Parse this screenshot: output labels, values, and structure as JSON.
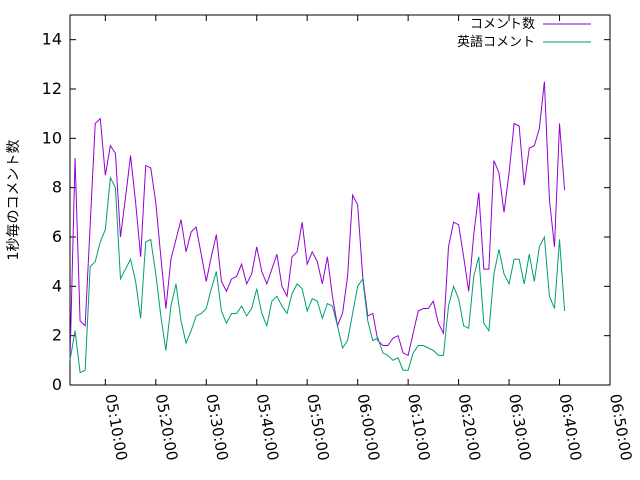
{
  "chart_data": {
    "type": "line",
    "title": "",
    "xlabel": "",
    "ylabel": "1秒毎のコメント数",
    "ylim": [
      0,
      15
    ],
    "xlim": [
      "05:03:00",
      "06:50:00"
    ],
    "y_ticks": [
      "0",
      "2",
      "4",
      "6",
      "8",
      "10",
      "12",
      "14"
    ],
    "x_ticks": [
      "05:10:00",
      "05:20:00",
      "05:30:00",
      "05:40:00",
      "05:50:00",
      "06:00:00",
      "06:10:00",
      "06:20:00",
      "06:30:00",
      "06:40:00",
      "06:50:00"
    ],
    "grid": false,
    "legend_position": "top-right",
    "series": [
      {
        "name": "コメント数",
        "color": "#9400d3",
        "x": [
          "05:03:00",
          "05:04:00",
          "05:05:00",
          "05:06:00",
          "05:07:00",
          "05:08:00",
          "05:09:00",
          "05:10:00",
          "05:11:00",
          "05:12:00",
          "05:13:00",
          "05:14:00",
          "05:15:00",
          "05:16:00",
          "05:17:00",
          "05:18:00",
          "05:19:00",
          "05:20:00",
          "05:21:00",
          "05:22:00",
          "05:23:00",
          "05:24:00",
          "05:25:00",
          "05:26:00",
          "05:27:00",
          "05:28:00",
          "05:29:00",
          "05:30:00",
          "05:31:00",
          "05:32:00",
          "05:33:00",
          "05:34:00",
          "05:35:00",
          "05:36:00",
          "05:37:00",
          "05:38:00",
          "05:39:00",
          "05:40:00",
          "05:41:00",
          "05:42:00",
          "05:43:00",
          "05:44:00",
          "05:45:00",
          "05:46:00",
          "05:47:00",
          "05:48:00",
          "05:49:00",
          "05:50:00",
          "05:51:00",
          "05:52:00",
          "05:53:00",
          "05:54:00",
          "05:55:00",
          "05:56:00",
          "05:57:00",
          "05:58:00",
          "05:59:00",
          "06:00:00",
          "06:01:00",
          "06:02:00",
          "06:03:00",
          "06:04:00",
          "06:05:00",
          "06:06:00",
          "06:07:00",
          "06:08:00",
          "06:09:00",
          "06:10:00",
          "06:11:00",
          "06:12:00",
          "06:13:00",
          "06:14:00",
          "06:15:00",
          "06:16:00",
          "06:17:00",
          "06:18:00",
          "06:19:00",
          "06:20:00",
          "06:21:00",
          "06:22:00",
          "06:23:00",
          "06:24:00",
          "06:25:00",
          "06:26:00",
          "06:27:00",
          "06:28:00",
          "06:29:00",
          "06:30:00",
          "06:31:00",
          "06:32:00",
          "06:33:00",
          "06:34:00",
          "06:35:00",
          "06:36:00",
          "06:37:00",
          "06:38:00",
          "06:39:00",
          "06:40:00",
          "06:41:00"
        ],
        "values": [
          1.0,
          9.2,
          2.6,
          2.4,
          6.5,
          10.6,
          10.8,
          8.5,
          9.7,
          9.4,
          6.0,
          7.6,
          9.3,
          7.4,
          5.2,
          8.9,
          8.8,
          7.4,
          5.2,
          3.1,
          5.1,
          5.9,
          6.7,
          5.4,
          6.2,
          6.4,
          5.3,
          4.2,
          5.2,
          6.1,
          4.2,
          3.8,
          4.3,
          4.4,
          4.9,
          4.1,
          4.5,
          5.6,
          4.6,
          4.1,
          4.7,
          5.3,
          4.0,
          3.6,
          5.2,
          5.4,
          6.6,
          4.9,
          5.4,
          5.0,
          4.1,
          5.2,
          3.6,
          2.4,
          2.9,
          4.4,
          7.7,
          7.3,
          4.4,
          2.8,
          2.9,
          1.8,
          1.6,
          1.6,
          1.9,
          2.0,
          1.3,
          1.2,
          2.1,
          3.0,
          3.1,
          3.1,
          3.4,
          2.5,
          2.1,
          5.6,
          6.6,
          6.5,
          5.2,
          3.8,
          6.1,
          7.8,
          4.7,
          4.7,
          9.1,
          8.6,
          7.0,
          8.6,
          10.6,
          10.5,
          8.1,
          9.6,
          9.7,
          10.4,
          12.3,
          7.5,
          5.6,
          10.6,
          7.9
        ]
      },
      {
        "name": "英語コメント",
        "color": "#009e73",
        "x": [
          "05:03:00",
          "05:04:00",
          "05:05:00",
          "05:06:00",
          "05:07:00",
          "05:08:00",
          "05:09:00",
          "05:10:00",
          "05:11:00",
          "05:12:00",
          "05:13:00",
          "05:14:00",
          "05:15:00",
          "05:16:00",
          "05:17:00",
          "05:18:00",
          "05:19:00",
          "05:20:00",
          "05:21:00",
          "05:22:00",
          "05:23:00",
          "05:24:00",
          "05:25:00",
          "05:26:00",
          "05:27:00",
          "05:28:00",
          "05:29:00",
          "05:30:00",
          "05:31:00",
          "05:32:00",
          "05:33:00",
          "05:34:00",
          "05:35:00",
          "05:36:00",
          "05:37:00",
          "05:38:00",
          "05:39:00",
          "05:40:00",
          "05:41:00",
          "05:42:00",
          "05:43:00",
          "05:44:00",
          "05:45:00",
          "05:46:00",
          "05:47:00",
          "05:48:00",
          "05:49:00",
          "05:50:00",
          "05:51:00",
          "05:52:00",
          "05:53:00",
          "05:54:00",
          "05:55:00",
          "05:56:00",
          "05:57:00",
          "05:58:00",
          "05:59:00",
          "06:00:00",
          "06:01:00",
          "06:02:00",
          "06:03:00",
          "06:04:00",
          "06:05:00",
          "06:06:00",
          "06:07:00",
          "06:08:00",
          "06:09:00",
          "06:10:00",
          "06:11:00",
          "06:12:00",
          "06:13:00",
          "06:14:00",
          "06:15:00",
          "06:16:00",
          "06:17:00",
          "06:18:00",
          "06:19:00",
          "06:20:00",
          "06:21:00",
          "06:22:00",
          "06:23:00",
          "06:24:00",
          "06:25:00",
          "06:26:00",
          "06:27:00",
          "06:28:00",
          "06:29:00",
          "06:30:00",
          "06:31:00",
          "06:32:00",
          "06:33:00",
          "06:34:00",
          "06:35:00",
          "06:36:00",
          "06:37:00",
          "06:38:00",
          "06:39:00",
          "06:40:00",
          "06:41:00"
        ],
        "values": [
          1.0,
          2.2,
          0.5,
          0.6,
          4.8,
          5.0,
          5.8,
          6.3,
          8.4,
          8.0,
          4.3,
          4.7,
          5.1,
          4.2,
          2.7,
          5.8,
          5.9,
          4.5,
          2.8,
          1.4,
          3.2,
          4.1,
          2.6,
          1.7,
          2.2,
          2.8,
          2.9,
          3.1,
          3.9,
          4.6,
          3.0,
          2.5,
          2.9,
          2.9,
          3.2,
          2.8,
          3.1,
          3.9,
          2.9,
          2.4,
          3.4,
          3.6,
          3.2,
          2.9,
          3.7,
          4.1,
          3.9,
          3.0,
          3.5,
          3.4,
          2.7,
          3.3,
          3.2,
          2.4,
          1.5,
          1.8,
          2.9,
          4.0,
          4.3,
          2.6,
          1.8,
          1.9,
          1.3,
          1.2,
          1.0,
          1.1,
          0.6,
          0.6,
          1.3,
          1.6,
          1.6,
          1.5,
          1.4,
          1.2,
          1.2,
          3.2,
          4.0,
          3.5,
          2.4,
          2.3,
          4.4,
          5.2,
          2.5,
          2.2,
          4.5,
          5.5,
          4.5,
          4.1,
          5.1,
          5.1,
          4.1,
          5.3,
          4.2,
          5.6,
          6.0,
          3.6,
          3.1,
          5.9,
          3.0
        ]
      }
    ]
  }
}
